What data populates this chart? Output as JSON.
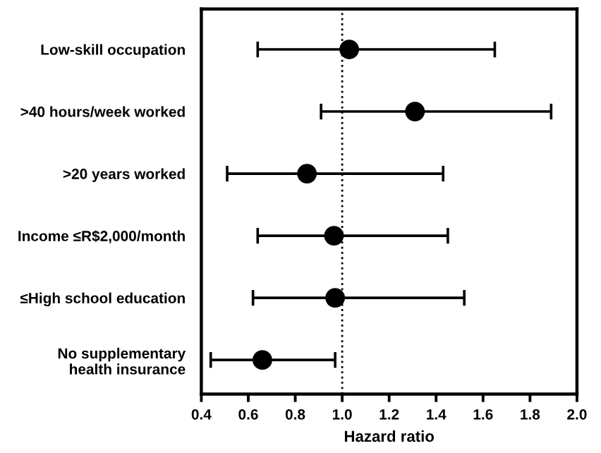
{
  "chart_data": {
    "type": "scatter",
    "orientation": "horizontal",
    "xlabel": "Hazard ratio",
    "categories": [
      "Low-skill occupation",
      ">40 hours/week worked",
      ">20 years worked",
      "Income ≤R$2,000/month",
      "≤High school education",
      "No supplementary\nhealth insurance"
    ],
    "values": [
      1.03,
      1.31,
      0.85,
      0.965,
      0.97,
      0.66
    ],
    "errors": [
      [
        0.64,
        1.65
      ],
      [
        0.91,
        1.89
      ],
      [
        0.51,
        1.43
      ],
      [
        0.64,
        1.45
      ],
      [
        0.62,
        1.52
      ],
      [
        0.44,
        0.97
      ]
    ],
    "color": "#000000",
    "marker": "circle",
    "xlim": [
      0.4,
      2.0
    ],
    "xticks": [
      0.4,
      0.6,
      0.8,
      {
        "value": 1,
        "label": "1.0"
      },
      1.2,
      1.4,
      1.6,
      1.8,
      {
        "value": 2,
        "label": "2.0"
      }
    ],
    "ref_lines": [
      {
        "axis": "x",
        "value": 1.0,
        "line_style": "dotted",
        "color": "#000000"
      }
    ],
    "grid": false,
    "legend": false
  }
}
